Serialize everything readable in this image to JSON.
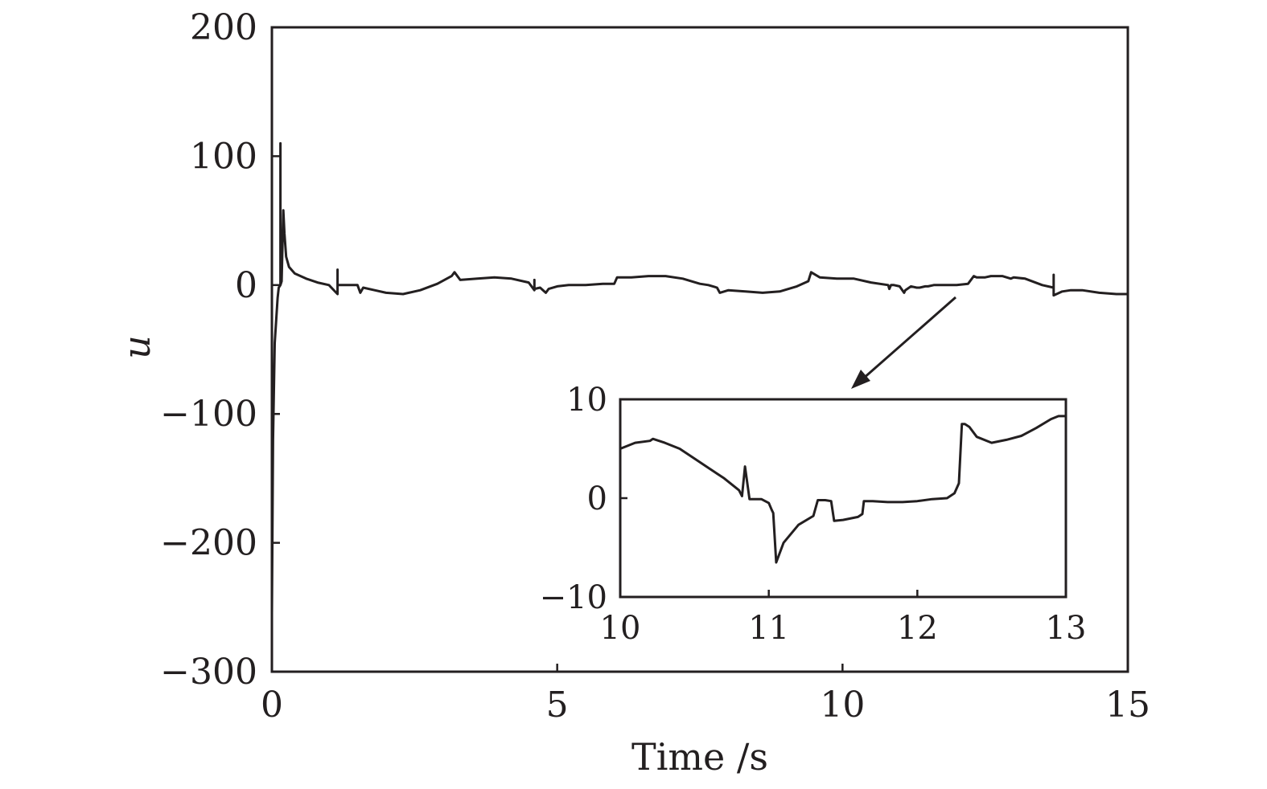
{
  "chart_data": [
    {
      "type": "line",
      "title": "",
      "xlabel": "Time /s",
      "ylabel": "u",
      "xlim": [
        0,
        15
      ],
      "ylim": [
        -300,
        200
      ],
      "xticks": [
        0,
        5,
        10,
        15
      ],
      "xtick_labels": [
        "0",
        "5",
        "10",
        "15"
      ],
      "yticks": [
        200,
        100,
        0,
        -100,
        -200,
        -300
      ],
      "ytick_labels": [
        "200",
        "100",
        "0",
        "−100",
        "−200",
        "−300"
      ],
      "grid": false,
      "legend": "none",
      "color": "#231f20",
      "series": [
        {
          "x": [
            0.0,
            0.02,
            0.05,
            0.1,
            0.12,
            0.15,
            0.15,
            0.15,
            0.17,
            0.2,
            0.22,
            0.25,
            0.3,
            0.4,
            0.6,
            0.8,
            1.0,
            1.15,
            1.15,
            1.15,
            1.3,
            1.5,
            1.55,
            1.6,
            1.8,
            2.0,
            2.3,
            2.6,
            2.9,
            3.15,
            3.2,
            3.3,
            3.6,
            3.9,
            4.2,
            4.5,
            4.6,
            4.6,
            4.6,
            4.7,
            4.8,
            4.85,
            5.0,
            5.2,
            5.5,
            5.8,
            6.0,
            6.05,
            6.3,
            6.6,
            6.9,
            7.2,
            7.5,
            7.65,
            7.8,
            7.85,
            8.0,
            8.3,
            8.6,
            8.9,
            9.2,
            9.4,
            9.45,
            9.6,
            9.9,
            10.2,
            10.5,
            10.8,
            10.82,
            10.85,
            10.9,
            11.0,
            11.08,
            11.1,
            11.2,
            11.3,
            11.35,
            11.45,
            11.5,
            11.6,
            11.65,
            11.8,
            12.0,
            12.2,
            12.3,
            12.35,
            12.4,
            12.5,
            12.6,
            12.8,
            12.95,
            13.0,
            13.2,
            13.5,
            13.7,
            13.7,
            13.7,
            13.85,
            14.0,
            14.2,
            14.5,
            14.8,
            15.0
          ],
          "y": [
            -255,
            -120,
            -45,
            -10,
            -2,
            0,
            110,
            0,
            3,
            58,
            40,
            22,
            14,
            9,
            5,
            2,
            0,
            -7,
            12,
            0,
            0,
            0,
            -6,
            -2,
            -4,
            -6,
            -7,
            -4,
            1,
            7,
            10,
            4,
            5,
            6,
            5,
            2,
            -4,
            4,
            -3,
            -2,
            -6,
            -3,
            -1,
            0,
            0,
            1,
            1,
            6,
            6,
            7,
            7,
            5,
            1,
            0,
            -2,
            -6,
            -4,
            -5,
            -6,
            -5,
            -1,
            3,
            10,
            6,
            5,
            5,
            2,
            0,
            -3,
            0,
            0,
            -1,
            -6,
            -4,
            -1,
            -2,
            -2,
            -1,
            -1,
            0,
            0,
            0,
            0,
            1,
            7,
            6,
            6,
            6,
            7,
            7,
            5,
            6,
            5,
            0,
            -2,
            8,
            -8,
            -5,
            -4,
            -4,
            -6,
            -7,
            -7
          ]
        }
      ]
    },
    {
      "type": "line",
      "title": "",
      "xlabel": "",
      "ylabel": "",
      "xlim": [
        10,
        13
      ],
      "ylim": [
        -10,
        10
      ],
      "xticks": [
        10,
        11,
        12,
        13
      ],
      "xtick_labels": [
        "10",
        "11",
        "12",
        "13"
      ],
      "yticks": [
        10,
        0,
        -10
      ],
      "ytick_labels": [
        "10",
        "0",
        "−10"
      ],
      "grid": false,
      "legend": "none",
      "annotation": "arrow pointing from main curve near t≈12 s to inset",
      "series": [
        {
          "x": [
            10.0,
            10.1,
            10.2,
            10.22,
            10.3,
            10.4,
            10.5,
            10.6,
            10.7,
            10.8,
            10.82,
            10.84,
            10.87,
            10.95,
            11.0,
            11.02,
            11.03,
            11.05,
            11.1,
            11.2,
            11.3,
            11.33,
            11.38,
            11.42,
            11.44,
            11.5,
            11.6,
            11.63,
            11.64,
            11.7,
            11.8,
            11.9,
            12.0,
            12.1,
            12.2,
            12.25,
            12.28,
            12.3,
            12.32,
            12.35,
            12.4,
            12.5,
            12.6,
            12.7,
            12.8,
            12.9,
            12.95,
            13.0
          ],
          "y": [
            5.0,
            5.6,
            5.8,
            6.0,
            5.6,
            5.0,
            4.0,
            3.0,
            2.0,
            0.8,
            0.2,
            3.2,
            -0.1,
            -0.1,
            -0.5,
            -1.2,
            -1.5,
            -6.5,
            -4.5,
            -2.7,
            -1.8,
            -0.2,
            -0.2,
            -0.3,
            -2.3,
            -2.2,
            -1.9,
            -1.6,
            -0.3,
            -0.3,
            -0.4,
            -0.4,
            -0.3,
            -0.1,
            0.0,
            0.5,
            1.5,
            7.5,
            7.5,
            7.2,
            6.2,
            5.6,
            5.9,
            6.3,
            7.1,
            8.0,
            8.3,
            8.3
          ]
        }
      ]
    }
  ]
}
